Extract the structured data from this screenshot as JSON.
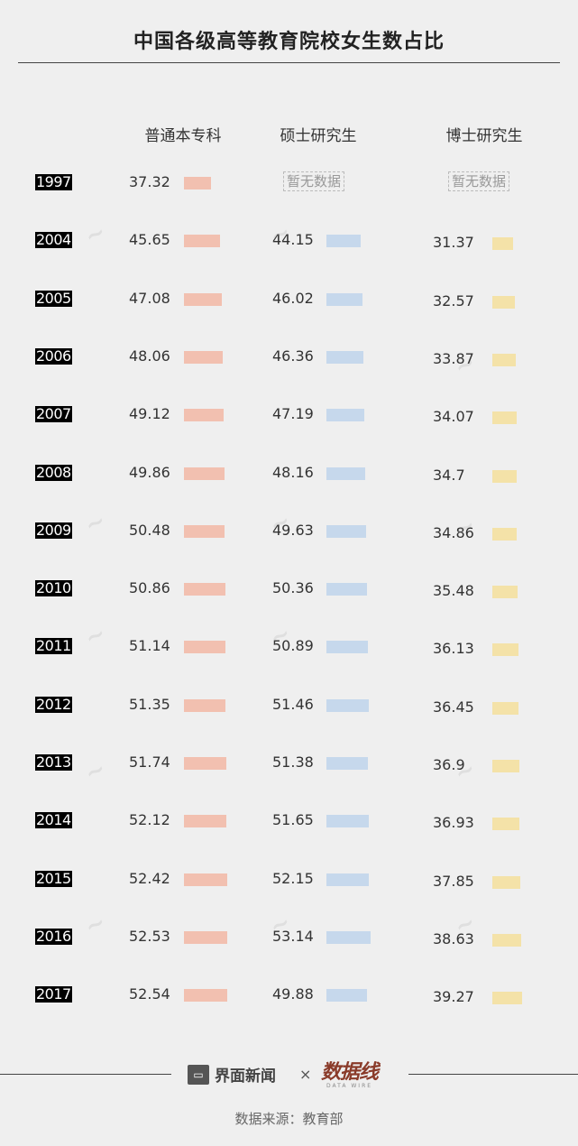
{
  "title": "中国各级高等教育院校女生数占比",
  "colors": {
    "undergrad": "#f2c0b0",
    "master": "#c6d8ec",
    "doctor": "#f4e2a8"
  },
  "no_data_label": "暂无数据",
  "footer": {
    "brand1": "界面新闻",
    "times": "×",
    "brand2": "数据线",
    "brand2_sub": "DATA WIRE",
    "source": "数据来源：教育部"
  },
  "chart_data": {
    "type": "table",
    "title": "中国各级高等教育院校女生数占比",
    "columns": [
      "普通本专科",
      "硕士研究生",
      "博士研究生"
    ],
    "rows": [
      {
        "year": "1997",
        "undergrad": "37.32",
        "master": null,
        "doctor": null
      },
      {
        "year": "2004",
        "undergrad": "45.65",
        "master": "44.15",
        "doctor": "31.37"
      },
      {
        "year": "2005",
        "undergrad": "47.08",
        "master": "46.02",
        "doctor": "32.57"
      },
      {
        "year": "2006",
        "undergrad": "48.06",
        "master": "46.36",
        "doctor": "33.87"
      },
      {
        "year": "2007",
        "undergrad": "49.12",
        "master": "47.19",
        "doctor": "34.07"
      },
      {
        "year": "2008",
        "undergrad": "49.86",
        "master": "48.16",
        "doctor": "34.7"
      },
      {
        "year": "2009",
        "undergrad": "50.48",
        "master": "49.63",
        "doctor": "34.86"
      },
      {
        "year": "2010",
        "undergrad": "50.86",
        "master": "50.36",
        "doctor": "35.48"
      },
      {
        "year": "2011",
        "undergrad": "51.14",
        "master": "50.89",
        "doctor": "36.13"
      },
      {
        "year": "2012",
        "undergrad": "51.35",
        "master": "51.46",
        "doctor": "36.45"
      },
      {
        "year": "2013",
        "undergrad": "51.74",
        "master": "51.38",
        "doctor": "36.9"
      },
      {
        "year": "2014",
        "undergrad": "52.12",
        "master": "51.65",
        "doctor": "36.93"
      },
      {
        "year": "2015",
        "undergrad": "52.42",
        "master": "52.15",
        "doctor": "37.85"
      },
      {
        "year": "2016",
        "undergrad": "52.53",
        "master": "53.14",
        "doctor": "38.63"
      },
      {
        "year": "2017",
        "undergrad": "52.54",
        "master": "49.88",
        "doctor": "39.27"
      }
    ]
  }
}
